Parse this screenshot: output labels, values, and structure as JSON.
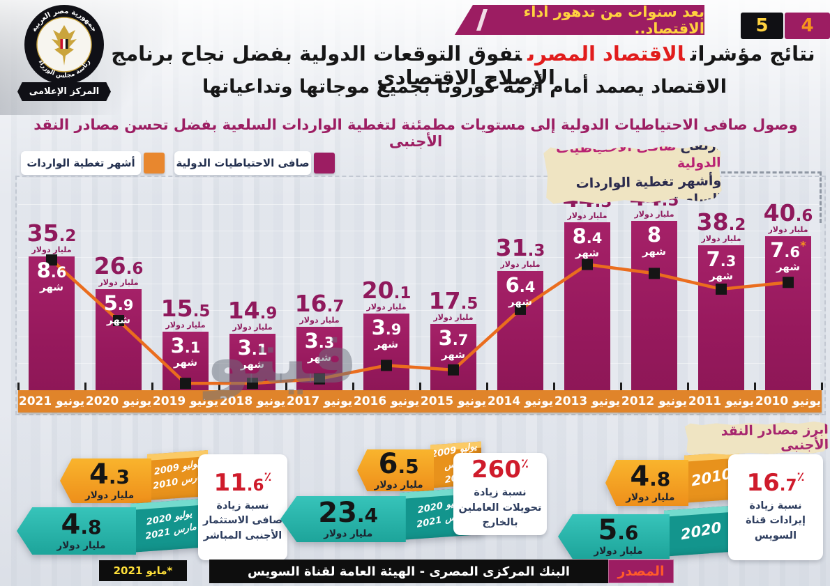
{
  "header": {
    "banner": "بعد سنوات من تدهور أداء الاقتصاد..",
    "page_num_5": "5",
    "page_num_4": "4",
    "logo": {
      "arc_top": "جمهورية مصر العربية",
      "arc_bottom": "رئاسة مجلس الوزراء",
      "ribbon": "المركز الإعلامى"
    },
    "title_pre": "نتائج مؤشرات",
    "title_highlight": "الاقتصاد المصرى",
    "title_post": "تفوق التوقعات الدولية بفضل نجاح برنامج الإصلاح الاقتصادى",
    "title_line2": "الاقتصاد يصمد أمام أزمة كورونا بجميع موجاتها وتداعياتها",
    "subtitle": "وصول صافى الاحتياطيات الدولية إلى مستويات مطمئنة لتغطية الواردات السلعية بفضل تحسن مصادر النقد الأجنبى"
  },
  "legend": {
    "reserves_label": "صافى الاحتياطيات الدولية",
    "reserves_color": "#9c1d62",
    "months_label": "أشهر تغطية الواردات",
    "months_color": "#e8872e"
  },
  "chart_note": {
    "line1_a": "ارتفاع",
    "line1_b": "صافى الاحتياطيات الدولية",
    "line2": "وأشهر تغطية الواردات السلعية"
  },
  "chart_data": {
    "type": "bar+line",
    "categories": [
      "يونيو 2010",
      "يونيو 2011",
      "يونيو 2012",
      "يونيو 2013",
      "يونيو 2014",
      "يونيو 2015",
      "يونيو 2016",
      "يونيو 2017",
      "يونيو 2018",
      "يونيو 2019",
      "يونيو 2020",
      "يونيو 2021"
    ],
    "series": [
      {
        "name": "صافى الاحتياطيات الدولية",
        "type": "bar",
        "unit": "مليار دولار",
        "color": "#9c1d62",
        "values": [
          35.2,
          26.6,
          15.5,
          14.9,
          16.7,
          20.1,
          17.5,
          31.3,
          44.3,
          44.5,
          38.2,
          40.6
        ]
      },
      {
        "name": "أشهر تغطية الواردات",
        "type": "line",
        "unit": "شهر",
        "color": "#ea6d1e",
        "marker": "black-square",
        "values": [
          8.6,
          5.9,
          3.1,
          3.1,
          3.3,
          3.9,
          3.7,
          6.4,
          8.4,
          8,
          7.3,
          7.6
        ],
        "footnote_index": 11,
        "footnote_mark": "*"
      }
    ],
    "grid": false,
    "legend_position": "top-right"
  },
  "sources": {
    "header": "أبرز مصادر النقد الأجنبى",
    "groups": [
      {
        "name": "fdi",
        "percent": "11.6",
        "percent_sign": "٪",
        "desc": "نسبة زيادة صافى الاستثمار الأجنبى المباشر",
        "old": {
          "value": "4.3",
          "unit": "مليار دولار",
          "period1": "يوليو 2009",
          "period2": "مارس 2010"
        },
        "new": {
          "value": "4.8",
          "unit": "مليار دولار",
          "period1": "يوليو 2020",
          "period2": "مارس 2021"
        }
      },
      {
        "name": "remittances",
        "percent": "260",
        "percent_sign": "٪",
        "desc": "نسبة زيادة تحويلات العاملين بالخارج",
        "old": {
          "value": "6.5",
          "unit": "مليار دولار",
          "period1": "يوليو 2009",
          "period2": "مارس 2010"
        },
        "new": {
          "value": "23.4",
          "unit": "مليار دولار",
          "period1": "يوليو 2020",
          "period2": "مارس 2021"
        }
      },
      {
        "name": "suez-canal",
        "percent": "16.7",
        "percent_sign": "٪",
        "desc": "نسبة زيادة إيرادات قناة السويس",
        "old": {
          "value": "4.8",
          "unit": "مليار دولار",
          "period1": "2010",
          "period2": ""
        },
        "new": {
          "value": "5.6",
          "unit": "مليار دولار",
          "period1": "2020",
          "period2": ""
        }
      }
    ]
  },
  "footer": {
    "source_label": "المصدر",
    "source_text": "البنك المركزى المصرى - الهيئة العامة لقناة السويس",
    "footnote": "*مايو 2021"
  },
  "watermark": "فيتو",
  "colors": {
    "bar": "#9c1d62",
    "line": "#ea6d1e",
    "axis_strip": "#e0842a",
    "accent_red": "#e11c1c",
    "banner_bg": "#9c1d62",
    "banner_text": "#ffd23f",
    "stat_red": "#cf1b2b",
    "orange_box": "#f6a21d",
    "teal_box": "#22ada4"
  }
}
